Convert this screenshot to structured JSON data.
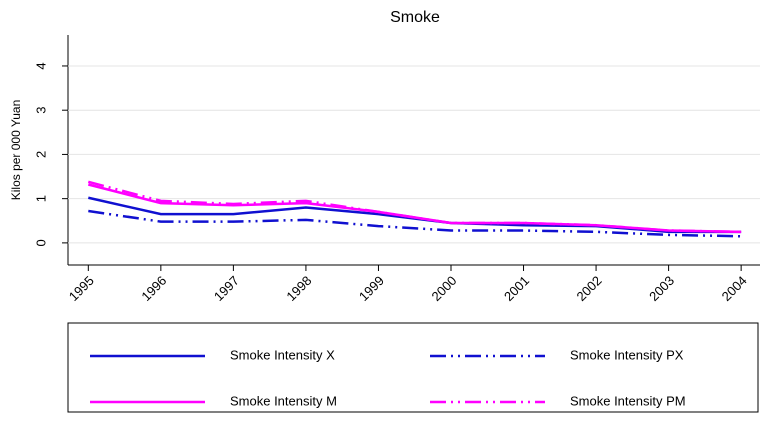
{
  "chart_data": {
    "type": "line",
    "title": "Smoke",
    "y_label": "Kilos per 000 Yuan",
    "x": [
      1995,
      1996,
      1997,
      1998,
      1999,
      2000,
      2001,
      2002,
      2003,
      2004
    ],
    "xlim": [
      1994.72,
      2004.26
    ],
    "xticks": [
      1995,
      1996,
      1997,
      1998,
      1999,
      2000,
      2001,
      2002,
      2003,
      2004
    ],
    "ylim": [
      -0.5,
      4.7
    ],
    "yticks": [
      0,
      1,
      2,
      3,
      4
    ],
    "grid": true,
    "series": [
      {
        "name": "Smoke Intensity X",
        "color": "#1010d0",
        "style": "solid",
        "values": [
          1.02,
          0.65,
          0.65,
          0.8,
          0.65,
          0.45,
          0.4,
          0.38,
          0.25,
          0.25
        ]
      },
      {
        "name": "Smoke Intensity PX",
        "color": "#1010d0",
        "style": "dashdotdot",
        "values": [
          0.72,
          0.48,
          0.48,
          0.52,
          0.38,
          0.28,
          0.28,
          0.25,
          0.18,
          0.15
        ]
      },
      {
        "name": "Smoke Intensity M",
        "color": "#ff00ff",
        "style": "solid",
        "values": [
          1.32,
          0.9,
          0.85,
          0.9,
          0.7,
          0.45,
          0.45,
          0.4,
          0.28,
          0.25
        ]
      },
      {
        "name": "Smoke Intensity PM",
        "color": "#ff00ff",
        "style": "dashdotdot",
        "values": [
          1.38,
          0.95,
          0.88,
          0.95,
          0.7,
          0.45,
          0.45,
          0.4,
          0.28,
          0.25
        ]
      }
    ]
  }
}
